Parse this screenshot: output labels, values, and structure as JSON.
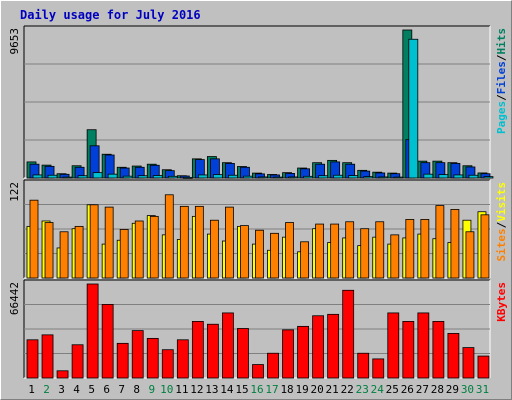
{
  "chart_data": [
    {
      "type": "bar",
      "title": "Daily usage for July 2016",
      "ymax_label": "9653",
      "ylim": [
        0,
        9653
      ],
      "grid": true,
      "legend_right": [
        {
          "name": "Pages",
          "color": "#00c0d0"
        },
        {
          "name": "/",
          "color": "#000000"
        },
        {
          "name": "Files",
          "color": "#0040d8"
        },
        {
          "name": "/",
          "color": "#000000"
        },
        {
          "name": "Hits",
          "color": "#008060"
        }
      ],
      "series": [
        {
          "name": "Hits",
          "color": "#008060",
          "values": [
            1050,
            840,
            280,
            800,
            3150,
            1550,
            700,
            780,
            900,
            540,
            150,
            1250,
            1400,
            1000,
            750,
            320,
            230,
            350,
            650,
            1000,
            1150,
            1000,
            500,
            380,
            320,
            9653,
            1100,
            1100,
            1000,
            800,
            330
          ]
        },
        {
          "name": "Files",
          "color": "#0040d8",
          "values": [
            900,
            760,
            240,
            700,
            2100,
            1500,
            650,
            700,
            830,
            480,
            130,
            1200,
            1250,
            950,
            700,
            270,
            200,
            300,
            600,
            900,
            1050,
            900,
            450,
            330,
            280,
            2500,
            1000,
            1000,
            950,
            720,
            280
          ]
        },
        {
          "name": "Pages",
          "color": "#00c0d0",
          "values": [
            200,
            180,
            60,
            150,
            350,
            250,
            120,
            150,
            160,
            110,
            40,
            200,
            220,
            180,
            120,
            70,
            60,
            70,
            110,
            150,
            180,
            160,
            90,
            70,
            60,
            9050,
            250,
            220,
            200,
            180,
            90
          ]
        }
      ]
    },
    {
      "type": "bar",
      "ymax_label": "122",
      "ylim": [
        0,
        122
      ],
      "grid": true,
      "legend_right": [
        {
          "name": "Sites",
          "color": "#ff8000"
        },
        {
          "name": "/",
          "color": "#000000"
        },
        {
          "name": "Visits",
          "color": "#ffff00"
        }
      ],
      "series": [
        {
          "name": "Visits",
          "color": "#ffff00",
          "values": [
            67,
            74,
            39,
            64,
            95,
            44,
            49,
            71,
            81,
            56,
            50,
            80,
            57,
            48,
            67,
            44,
            36,
            53,
            34,
            64,
            46,
            52,
            42,
            53,
            44,
            52,
            57,
            51,
            46,
            75,
            86
          ]
        },
        {
          "name": "Sites",
          "color": "#ff8000",
          "values": [
            101,
            72,
            60,
            67,
            95,
            92,
            63,
            74,
            80,
            108,
            93,
            93,
            75,
            92,
            68,
            62,
            58,
            72,
            47,
            70,
            70,
            73,
            64,
            73,
            56,
            76,
            76,
            94,
            89,
            60,
            82
          ]
        }
      ]
    },
    {
      "type": "bar",
      "ymax_label": "66442",
      "ylim": [
        0,
        66442
      ],
      "grid": true,
      "legend_right": [
        {
          "name": "KBytes",
          "color": "#ff0000"
        }
      ],
      "series": [
        {
          "name": "KBytes",
          "color": "#ff0000",
          "values": [
            27000,
            30500,
            5100,
            23500,
            66442,
            52000,
            24500,
            33500,
            28000,
            20000,
            27000,
            40000,
            38000,
            46000,
            35000,
            9500,
            17500,
            34000,
            36500,
            44000,
            45000,
            62000,
            17500,
            13500,
            46000,
            40000,
            46000,
            40000,
            31500,
            21500,
            15500
          ]
        }
      ]
    }
  ],
  "x_labels": [
    {
      "text": "1",
      "color": "#000000"
    },
    {
      "text": "2",
      "color": "#008040"
    },
    {
      "text": "3",
      "color": "#000000"
    },
    {
      "text": "4",
      "color": "#000000"
    },
    {
      "text": "5",
      "color": "#000000"
    },
    {
      "text": "6",
      "color": "#000000"
    },
    {
      "text": "7",
      "color": "#000000"
    },
    {
      "text": "8",
      "color": "#000000"
    },
    {
      "text": "9",
      "color": "#008040"
    },
    {
      "text": "10",
      "color": "#008040"
    },
    {
      "text": "11",
      "color": "#000000"
    },
    {
      "text": "12",
      "color": "#000000"
    },
    {
      "text": "13",
      "color": "#000000"
    },
    {
      "text": "14",
      "color": "#000000"
    },
    {
      "text": "15",
      "color": "#000000"
    },
    {
      "text": "16",
      "color": "#008040"
    },
    {
      "text": "17",
      "color": "#008040"
    },
    {
      "text": "18",
      "color": "#000000"
    },
    {
      "text": "19",
      "color": "#000000"
    },
    {
      "text": "20",
      "color": "#000000"
    },
    {
      "text": "21",
      "color": "#000000"
    },
    {
      "text": "22",
      "color": "#000000"
    },
    {
      "text": "23",
      "color": "#008040"
    },
    {
      "text": "24",
      "color": "#008040"
    },
    {
      "text": "25",
      "color": "#000000"
    },
    {
      "text": "26",
      "color": "#000000"
    },
    {
      "text": "27",
      "color": "#000000"
    },
    {
      "text": "28",
      "color": "#000000"
    },
    {
      "text": "29",
      "color": "#000000"
    },
    {
      "text": "30",
      "color": "#008040"
    },
    {
      "text": "31",
      "color": "#008040"
    }
  ]
}
